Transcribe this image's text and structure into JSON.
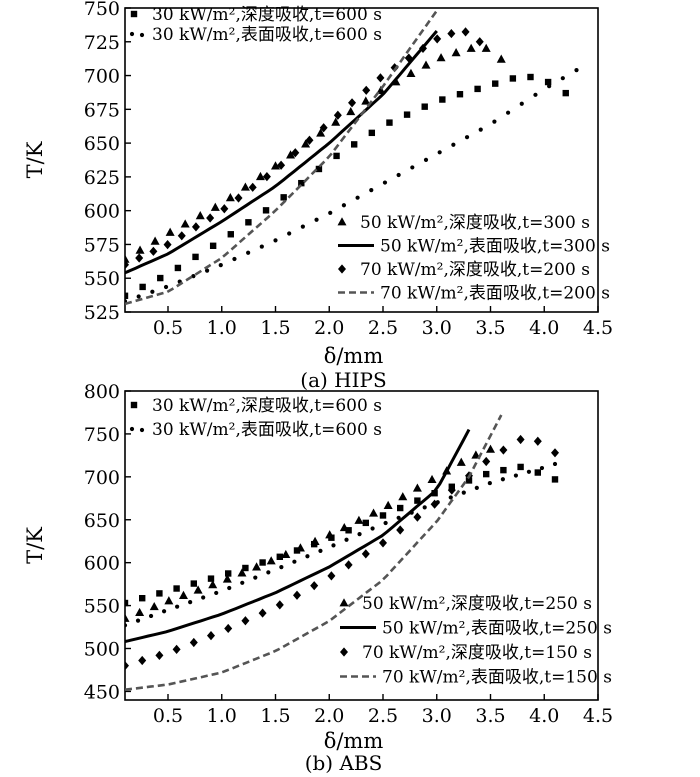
{
  "chart_data": [
    {
      "type": "scatter",
      "caption": "(a) HIPS",
      "xlabel": "δ/mm",
      "ylabel": "T/K",
      "xlim": [
        0.1,
        4.5
      ],
      "ylim": [
        525,
        750
      ],
      "xticks": [
        0.5,
        1.0,
        1.5,
        2.0,
        2.5,
        3.0,
        3.5,
        4.0,
        4.5
      ],
      "xtick_labels": [
        "0.5",
        "1.0",
        "1.5",
        "2.0",
        "2.5",
        "3.0",
        "3.5",
        "4.0",
        "4.5"
      ],
      "yticks": [
        525,
        550,
        575,
        600,
        625,
        650,
        675,
        700,
        725,
        750
      ],
      "ytick_labels": [
        "525",
        "550",
        "575",
        "600",
        "625",
        "650",
        "675",
        "700",
        "725",
        "750"
      ],
      "legend_upper": "top-left",
      "legend_lower": "bottom-right",
      "series": [
        {
          "name": "30 kW/m²,深度吸收,t=600 s",
          "marker": "square",
          "legend": "upper",
          "x": [
            0.1,
            0.5,
            1.0,
            1.5,
            2.0,
            2.5,
            3.0,
            3.5,
            3.8,
            4.0,
            4.2
          ],
          "y": [
            537,
            553,
            578,
            605,
            637,
            663,
            681,
            693,
            700,
            697,
            687
          ]
        },
        {
          "name": "30 kW/m²,表面吸收,t=600 s",
          "marker": "dot",
          "legend": "upper",
          "x": [
            0.1,
            0.5,
            1.0,
            1.5,
            2.0,
            2.5,
            3.0,
            3.5,
            4.0,
            4.3
          ],
          "y": [
            533,
            544,
            560,
            578,
            598,
            620,
            642,
            664,
            690,
            704
          ]
        },
        {
          "name": "50 kW/m²,深度吸收,t=300 s",
          "marker": "triangle",
          "legend": "lower",
          "x": [
            0.1,
            0.5,
            1.0,
            1.5,
            2.0,
            2.5,
            3.0,
            3.3,
            3.5,
            3.6
          ],
          "y": [
            564,
            583,
            605,
            633,
            662,
            690,
            712,
            720,
            720,
            712
          ]
        },
        {
          "name": "50 kW/m²,表面吸收,t=300 s",
          "marker": "line",
          "legend": "lower",
          "x": [
            0.1,
            0.5,
            1.0,
            1.5,
            2.0,
            2.5,
            3.0
          ],
          "y": [
            554,
            568,
            592,
            618,
            650,
            686,
            733
          ]
        },
        {
          "name": "70 kW/m²,深度吸收,t=200 s",
          "marker": "diamond",
          "legend": "lower",
          "x": [
            0.1,
            0.5,
            1.0,
            1.5,
            2.0,
            2.5,
            3.0,
            3.2,
            3.3,
            3.4
          ],
          "y": [
            560,
            575,
            600,
            630,
            665,
            700,
            727,
            733,
            732,
            725
          ]
        },
        {
          "name": "70 kW/m²,表面吸收,t=200 s",
          "marker": "dash",
          "legend": "lower",
          "x": [
            0.1,
            0.5,
            1.0,
            1.5,
            2.0,
            2.5,
            3.0
          ],
          "y": [
            531,
            540,
            565,
            600,
            640,
            692,
            748
          ]
        }
      ]
    },
    {
      "type": "scatter",
      "caption": "(b) ABS",
      "xlabel": "δ/mm",
      "ylabel": "T/K",
      "xlim": [
        0.1,
        4.5
      ],
      "ylim": [
        440,
        800
      ],
      "xticks": [
        0.5,
        1.0,
        1.5,
        2.0,
        2.5,
        3.0,
        3.5,
        4.0,
        4.5
      ],
      "xtick_labels": [
        "0.5",
        "1.0",
        "1.5",
        "2.0",
        "2.5",
        "3.0",
        "3.5",
        "4.0",
        "4.5"
      ],
      "yticks": [
        450,
        500,
        550,
        600,
        650,
        700,
        750,
        800
      ],
      "ytick_labels": [
        "450",
        "500",
        "550",
        "600",
        "650",
        "700",
        "750",
        "800"
      ],
      "legend_upper": "top-left",
      "legend_lower": "bottom-right",
      "series": [
        {
          "name": "30 kW/m²,深度吸收,t=600 s",
          "marker": "square",
          "legend": "upper",
          "x": [
            0.1,
            0.5,
            1.0,
            1.5,
            2.0,
            2.5,
            3.0,
            3.5,
            3.8,
            4.1
          ],
          "y": [
            553,
            567,
            585,
            605,
            628,
            655,
            682,
            705,
            712,
            697
          ]
        },
        {
          "name": "30 kW/m²,表面吸收,t=600 s",
          "marker": "dot",
          "legend": "upper",
          "x": [
            0.1,
            0.5,
            1.0,
            1.5,
            2.0,
            2.5,
            3.0,
            3.5,
            4.0,
            4.1
          ],
          "y": [
            527,
            545,
            567,
            592,
            618,
            645,
            670,
            693,
            711,
            715
          ]
        },
        {
          "name": "50 kW/m²,深度吸收,t=250 s",
          "marker": "triangle",
          "legend": "lower",
          "x": [
            0.1,
            0.5,
            1.0,
            1.5,
            2.0,
            2.5,
            3.0,
            3.3,
            3.5
          ],
          "y": [
            535,
            555,
            578,
            604,
            632,
            663,
            700,
            722,
            732
          ]
        },
        {
          "name": "50 kW/m²,表面吸收,t=250 s",
          "marker": "line",
          "legend": "lower",
          "x": [
            0.1,
            0.5,
            1.0,
            1.5,
            2.0,
            2.5,
            3.0,
            3.3
          ],
          "y": [
            508,
            520,
            540,
            565,
            595,
            632,
            685,
            755
          ]
        },
        {
          "name": "70 kW/m²,深度吸收,t=150 s",
          "marker": "diamond",
          "legend": "lower",
          "x": [
            0.1,
            0.5,
            1.0,
            1.5,
            2.0,
            2.5,
            3.0,
            3.5,
            3.8,
            4.0,
            4.1
          ],
          "y": [
            480,
            495,
            520,
            548,
            583,
            623,
            670,
            722,
            745,
            740,
            728
          ]
        },
        {
          "name": "70 kW/m²,表面吸收,t=150 s",
          "marker": "dash",
          "legend": "lower",
          "x": [
            0.1,
            0.5,
            1.0,
            1.5,
            2.0,
            2.5,
            3.0,
            3.3,
            3.6
          ],
          "y": [
            452,
            458,
            472,
            497,
            532,
            580,
            648,
            700,
            772
          ]
        }
      ]
    }
  ]
}
